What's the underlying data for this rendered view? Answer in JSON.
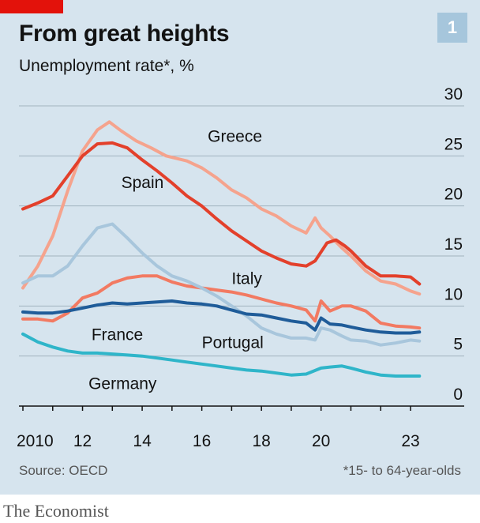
{
  "header": {
    "title": "From great heights",
    "subtitle": "Unemployment rate*, %",
    "badge": "1"
  },
  "footer": {
    "source": "Source: OECD",
    "footnote": "*15- to 64-year-olds",
    "brand": "The Economist"
  },
  "colors": {
    "background": "#d6e4ee",
    "brand_red": "#e3120b",
    "gridline": "#a2b3bf"
  },
  "chart_data": {
    "type": "line",
    "title": "From great heights",
    "ylabel": "Unemployment rate*, %",
    "ylim": [
      0,
      30
    ],
    "yticks": [
      0,
      5,
      10,
      15,
      20,
      25,
      30
    ],
    "xlim": [
      2010,
      2023.5
    ],
    "xtick_labels": [
      {
        "x": 2010,
        "label": "2010"
      },
      {
        "x": 2012,
        "label": "12"
      },
      {
        "x": 2014,
        "label": "14"
      },
      {
        "x": 2016,
        "label": "16"
      },
      {
        "x": 2018,
        "label": "18"
      },
      {
        "x": 2020,
        "label": "20"
      },
      {
        "x": 2023,
        "label": "23"
      }
    ],
    "legend": "direct labels on lines",
    "grid": true,
    "series": [
      {
        "name": "Greece",
        "color": "#f5a38d",
        "width": 4,
        "label_at": [
          2016.2,
          26.4
        ],
        "points": [
          [
            2010,
            11.8
          ],
          [
            2010.5,
            14.0
          ],
          [
            2011,
            17.0
          ],
          [
            2011.5,
            21.5
          ],
          [
            2012,
            25.5
          ],
          [
            2012.5,
            27.6
          ],
          [
            2012.9,
            28.4
          ],
          [
            2013.3,
            27.5
          ],
          [
            2013.8,
            26.5
          ],
          [
            2014.3,
            25.8
          ],
          [
            2014.8,
            25.0
          ],
          [
            2015.5,
            24.5
          ],
          [
            2016,
            23.8
          ],
          [
            2016.5,
            22.8
          ],
          [
            2017,
            21.6
          ],
          [
            2017.5,
            20.8
          ],
          [
            2018,
            19.7
          ],
          [
            2018.5,
            19.0
          ],
          [
            2019,
            18.0
          ],
          [
            2019.5,
            17.3
          ],
          [
            2019.8,
            18.8
          ],
          [
            2020,
            17.8
          ],
          [
            2020.3,
            17.0
          ],
          [
            2020.7,
            15.8
          ],
          [
            2021,
            15.0
          ],
          [
            2021.5,
            13.5
          ],
          [
            2022,
            12.5
          ],
          [
            2022.5,
            12.2
          ],
          [
            2023,
            11.5
          ],
          [
            2023.3,
            11.2
          ]
        ]
      },
      {
        "name": "Spain",
        "color": "#e3402b",
        "width": 4,
        "label_at": [
          2013.3,
          21.8
        ],
        "points": [
          [
            2010,
            19.7
          ],
          [
            2010.5,
            20.3
          ],
          [
            2011,
            21.0
          ],
          [
            2011.5,
            23.0
          ],
          [
            2012,
            25.0
          ],
          [
            2012.5,
            26.2
          ],
          [
            2013,
            26.3
          ],
          [
            2013.5,
            25.8
          ],
          [
            2014,
            24.6
          ],
          [
            2014.5,
            23.5
          ],
          [
            2015,
            22.3
          ],
          [
            2015.5,
            21.0
          ],
          [
            2016,
            20.0
          ],
          [
            2016.5,
            18.7
          ],
          [
            2017,
            17.5
          ],
          [
            2017.5,
            16.5
          ],
          [
            2018,
            15.5
          ],
          [
            2018.5,
            14.8
          ],
          [
            2019,
            14.2
          ],
          [
            2019.5,
            14.0
          ],
          [
            2019.8,
            14.5
          ],
          [
            2020.2,
            16.3
          ],
          [
            2020.5,
            16.6
          ],
          [
            2020.8,
            16.0
          ],
          [
            2021,
            15.5
          ],
          [
            2021.5,
            14.0
          ],
          [
            2022,
            13.0
          ],
          [
            2022.5,
            13.0
          ],
          [
            2023,
            12.9
          ],
          [
            2023.3,
            12.2
          ]
        ]
      },
      {
        "name": "Italy",
        "color": "#f27a62",
        "width": 4,
        "label_at": [
          2017.0,
          12.2
        ],
        "points": [
          [
            2010,
            8.7
          ],
          [
            2010.5,
            8.7
          ],
          [
            2011,
            8.5
          ],
          [
            2011.5,
            9.3
          ],
          [
            2012,
            10.8
          ],
          [
            2012.5,
            11.3
          ],
          [
            2013,
            12.3
          ],
          [
            2013.5,
            12.8
          ],
          [
            2014,
            13.0
          ],
          [
            2014.5,
            13.0
          ],
          [
            2015,
            12.4
          ],
          [
            2015.5,
            12.0
          ],
          [
            2016,
            11.8
          ],
          [
            2016.5,
            11.6
          ],
          [
            2017,
            11.4
          ],
          [
            2017.5,
            11.1
          ],
          [
            2018,
            10.7
          ],
          [
            2018.5,
            10.3
          ],
          [
            2019,
            10.0
          ],
          [
            2019.5,
            9.6
          ],
          [
            2019.8,
            8.5
          ],
          [
            2020,
            10.5
          ],
          [
            2020.3,
            9.5
          ],
          [
            2020.7,
            10.0
          ],
          [
            2021,
            10.0
          ],
          [
            2021.5,
            9.5
          ],
          [
            2022,
            8.3
          ],
          [
            2022.5,
            8.0
          ],
          [
            2023,
            7.9
          ],
          [
            2023.3,
            7.8
          ]
        ]
      },
      {
        "name": "Portugal",
        "color": "#a8c6dc",
        "width": 4,
        "label_at": [
          2016.0,
          5.8
        ],
        "points": [
          [
            2010,
            12.3
          ],
          [
            2010.5,
            13.0
          ],
          [
            2011,
            13.0
          ],
          [
            2011.5,
            14.0
          ],
          [
            2012,
            16.0
          ],
          [
            2012.5,
            17.8
          ],
          [
            2013,
            18.2
          ],
          [
            2013.5,
            16.8
          ],
          [
            2014,
            15.3
          ],
          [
            2014.5,
            14.0
          ],
          [
            2015,
            13.0
          ],
          [
            2015.5,
            12.5
          ],
          [
            2016,
            11.8
          ],
          [
            2016.5,
            11.0
          ],
          [
            2017,
            10.0
          ],
          [
            2017.5,
            9.0
          ],
          [
            2018,
            7.8
          ],
          [
            2018.5,
            7.2
          ],
          [
            2019,
            6.8
          ],
          [
            2019.5,
            6.8
          ],
          [
            2019.8,
            6.6
          ],
          [
            2020,
            7.8
          ],
          [
            2020.3,
            7.6
          ],
          [
            2020.7,
            7.0
          ],
          [
            2021,
            6.6
          ],
          [
            2021.5,
            6.5
          ],
          [
            2022,
            6.1
          ],
          [
            2022.5,
            6.3
          ],
          [
            2023,
            6.6
          ],
          [
            2023.3,
            6.5
          ]
        ]
      },
      {
        "name": "France",
        "color": "#1f5c99",
        "width": 4,
        "label_at": [
          2012.3,
          6.6
        ],
        "points": [
          [
            2010,
            9.4
          ],
          [
            2010.5,
            9.3
          ],
          [
            2011,
            9.3
          ],
          [
            2011.5,
            9.5
          ],
          [
            2012,
            9.8
          ],
          [
            2012.5,
            10.1
          ],
          [
            2013,
            10.3
          ],
          [
            2013.5,
            10.2
          ],
          [
            2014,
            10.3
          ],
          [
            2014.5,
            10.4
          ],
          [
            2015,
            10.5
          ],
          [
            2015.5,
            10.3
          ],
          [
            2016,
            10.2
          ],
          [
            2016.5,
            10.0
          ],
          [
            2017,
            9.6
          ],
          [
            2017.5,
            9.2
          ],
          [
            2018,
            9.1
          ],
          [
            2018.5,
            8.8
          ],
          [
            2019,
            8.5
          ],
          [
            2019.5,
            8.3
          ],
          [
            2019.8,
            7.6
          ],
          [
            2020,
            8.8
          ],
          [
            2020.3,
            8.2
          ],
          [
            2020.7,
            8.1
          ],
          [
            2021,
            7.9
          ],
          [
            2021.5,
            7.6
          ],
          [
            2022,
            7.4
          ],
          [
            2022.5,
            7.3
          ],
          [
            2023,
            7.3
          ],
          [
            2023.3,
            7.4
          ]
        ]
      },
      {
        "name": "Germany",
        "color": "#2fb5c9",
        "width": 4,
        "label_at": [
          2012.2,
          1.7
        ],
        "points": [
          [
            2010,
            7.2
          ],
          [
            2010.5,
            6.4
          ],
          [
            2011,
            5.9
          ],
          [
            2011.5,
            5.5
          ],
          [
            2012,
            5.3
          ],
          [
            2012.5,
            5.3
          ],
          [
            2013,
            5.2
          ],
          [
            2013.5,
            5.1
          ],
          [
            2014,
            5.0
          ],
          [
            2014.5,
            4.8
          ],
          [
            2015,
            4.6
          ],
          [
            2015.5,
            4.4
          ],
          [
            2016,
            4.2
          ],
          [
            2016.5,
            4.0
          ],
          [
            2017,
            3.8
          ],
          [
            2017.5,
            3.6
          ],
          [
            2018,
            3.5
          ],
          [
            2018.5,
            3.3
          ],
          [
            2019,
            3.1
          ],
          [
            2019.5,
            3.2
          ],
          [
            2020,
            3.8
          ],
          [
            2020.3,
            3.9
          ],
          [
            2020.7,
            4.0
          ],
          [
            2021,
            3.8
          ],
          [
            2021.5,
            3.4
          ],
          [
            2022,
            3.1
          ],
          [
            2022.5,
            3.0
          ],
          [
            2023,
            3.0
          ],
          [
            2023.3,
            3.0
          ]
        ]
      }
    ]
  }
}
